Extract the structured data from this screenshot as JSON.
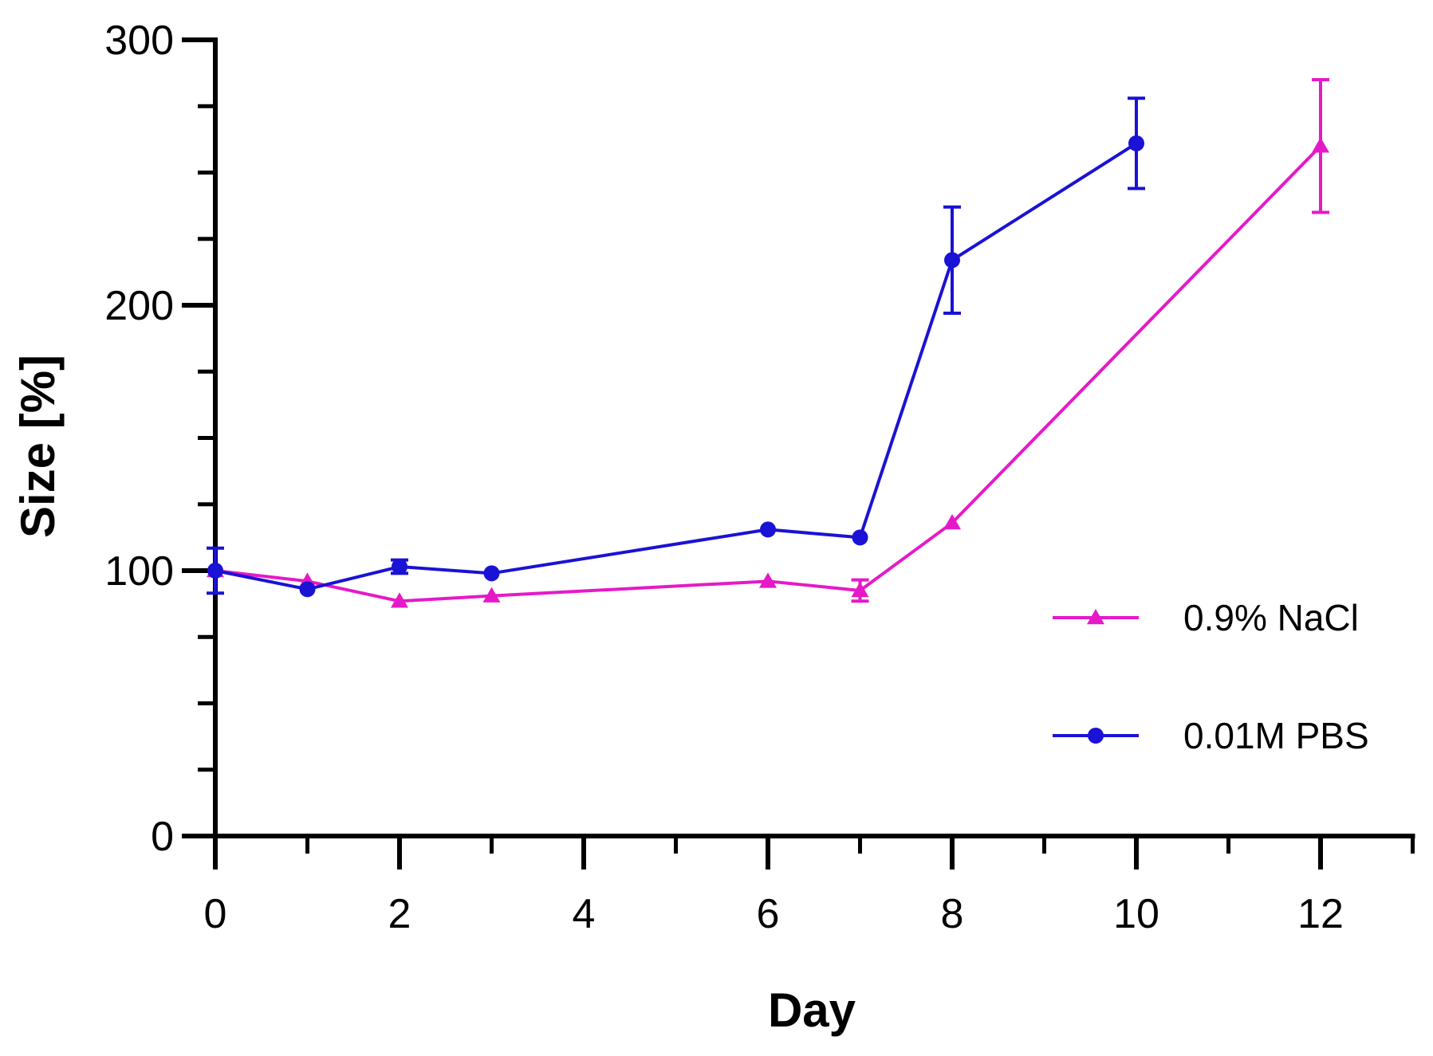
{
  "chart_data": {
    "type": "line",
    "title": "",
    "xlabel": "Day",
    "ylabel": "Size [%]",
    "xlim": [
      0,
      13
    ],
    "ylim": [
      0,
      300
    ],
    "x_ticks": [
      0,
      2,
      4,
      6,
      8,
      10,
      12
    ],
    "x_minor_ticks": [
      1,
      3,
      5,
      7,
      9,
      11,
      13
    ],
    "y_ticks": [
      0,
      100,
      200,
      300
    ],
    "y_minor_step": 25,
    "grid": false,
    "legend_position": "right",
    "series": [
      {
        "name": "0.9% NaCl",
        "color": "#e619c8",
        "marker": "triangle",
        "x": [
          0,
          1,
          2,
          3,
          6,
          7,
          8,
          12
        ],
        "y": [
          100,
          96,
          88.5,
          90.5,
          96,
          92.5,
          118,
          260
        ],
        "err": [
          0,
          0,
          0,
          0,
          0,
          4,
          0,
          25
        ]
      },
      {
        "name": "0.01M PBS",
        "color": "#1a12d4",
        "marker": "circle",
        "x": [
          0,
          1,
          2,
          3,
          6,
          7,
          8,
          10
        ],
        "y": [
          100,
          93,
          101.5,
          99,
          115.5,
          112.5,
          217,
          261
        ],
        "err": [
          8.5,
          0,
          2.5,
          0,
          0,
          0,
          20,
          17
        ]
      }
    ]
  }
}
